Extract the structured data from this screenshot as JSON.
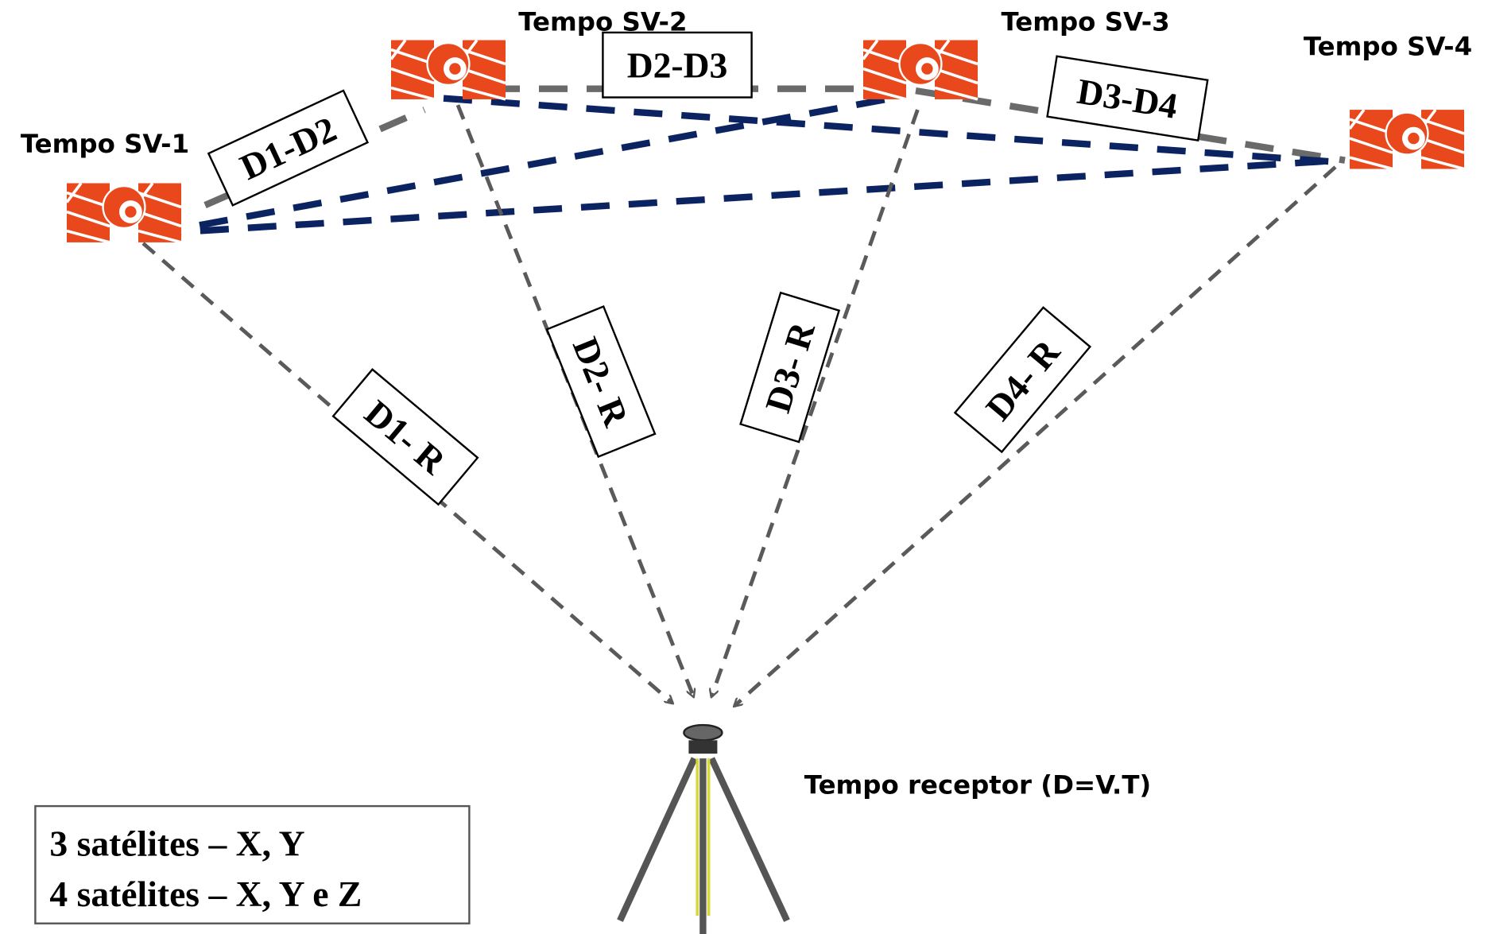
{
  "satellites": [
    {
      "label": "Tempo SV-1"
    },
    {
      "label": "Tempo SV-2"
    },
    {
      "label": "Tempo SV-3"
    },
    {
      "label": "Tempo SV-4"
    }
  ],
  "distances": [
    {
      "label": "D1-D2"
    },
    {
      "label": "D2-D3"
    },
    {
      "label": "D3-D4"
    },
    {
      "label": "D1- R"
    },
    {
      "label": "D2- R"
    },
    {
      "label": "D3- R"
    },
    {
      "label": "D4- R"
    }
  ],
  "receiver": {
    "label": "Tempo receptor (D=V.T)"
  },
  "info_box": {
    "lines": [
      "3 satélites – X, Y",
      "4 satélites – X, Y e Z"
    ]
  }
}
